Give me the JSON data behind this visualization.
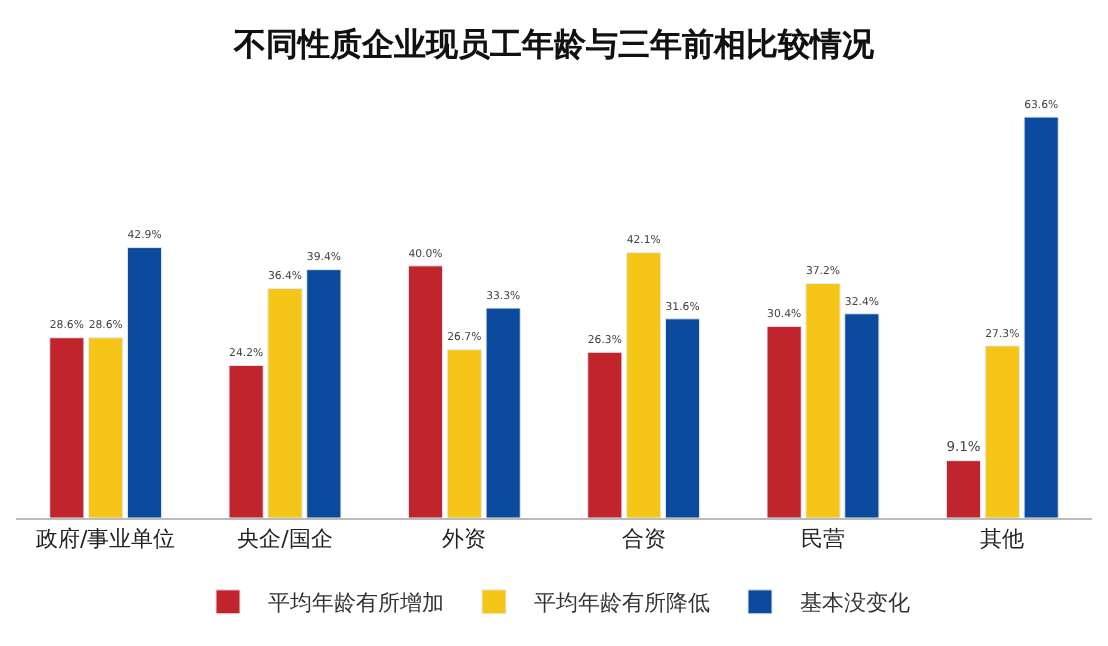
{
  "chart_data": {
    "type": "bar",
    "title": "不同性质企业现员工年龄与三年前相比较情况",
    "categories": [
      "政府/事业单位",
      "央企/国企",
      "外资",
      "合资",
      "民营",
      "其他"
    ],
    "series": [
      {
        "name": "平均年龄有所增加",
        "color": "#c0252d",
        "values": [
          28.6,
          24.2,
          40.0,
          26.3,
          30.4,
          9.1
        ],
        "value_labels": [
          "28.6%",
          "24.2%",
          "40.0%",
          "26.3%",
          "30.4%",
          "9.1%"
        ]
      },
      {
        "name": "平均年龄有所降低",
        "color": "#f5c518",
        "values": [
          28.6,
          36.4,
          26.7,
          42.1,
          37.2,
          27.3
        ],
        "value_labels": [
          "28.6%",
          "36.4%",
          "26.7%",
          "42.1%",
          "37.2%",
          "27.3%"
        ]
      },
      {
        "name": "基本没变化",
        "color": "#0b4a9c",
        "values": [
          42.9,
          39.4,
          33.3,
          31.6,
          32.4,
          63.6
        ],
        "value_labels": [
          "42.9%",
          "39.4%",
          "33.3%",
          "31.6%",
          "32.4%",
          "63.6%"
        ]
      }
    ],
    "legend": "bottom",
    "tick_labels": "x"
  }
}
